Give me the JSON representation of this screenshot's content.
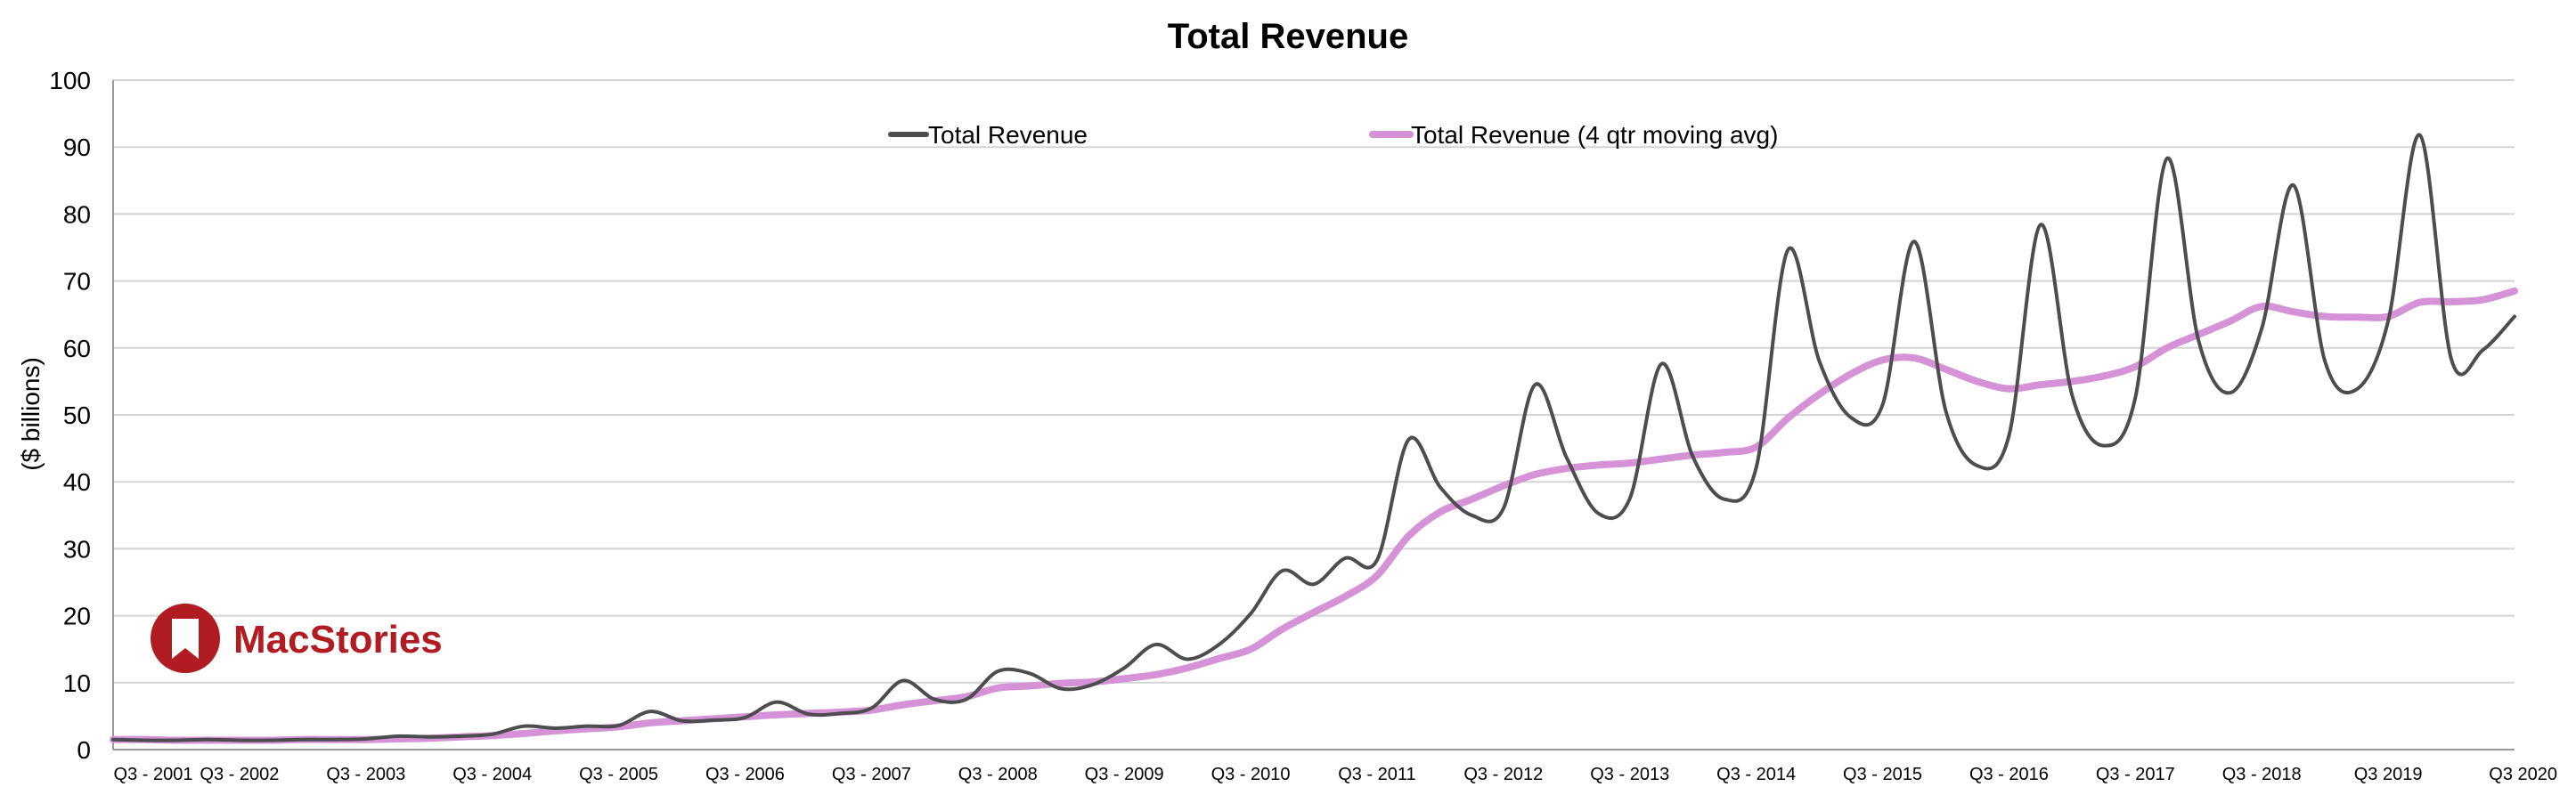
{
  "chart_data": {
    "type": "line",
    "title": "Total Revenue",
    "xlabel": "",
    "ylabel": "($ billions)",
    "ylim": [
      0,
      100
    ],
    "yticks": [
      0,
      10,
      20,
      30,
      40,
      50,
      60,
      70,
      80,
      90,
      100
    ],
    "grid": "horizontal",
    "legend_position": "top",
    "categories": [
      "Q3 - 2001",
      "Q4 - 2001",
      "Q1 - 2002",
      "Q2 - 2002",
      "Q3 - 2002",
      "Q4 - 2002",
      "Q1 - 2003",
      "Q2 - 2003",
      "Q3 - 2003",
      "Q4 - 2003",
      "Q1 - 2004",
      "Q2 - 2004",
      "Q3 - 2004",
      "Q4 - 2004",
      "Q1 - 2005",
      "Q2 - 2005",
      "Q3 - 2005",
      "Q4 - 2005",
      "Q1 - 2006",
      "Q2 - 2006",
      "Q3 - 2006",
      "Q4 - 2006",
      "Q1 - 2007",
      "Q2 - 2007",
      "Q3 - 2007",
      "Q4 - 2007",
      "Q1 - 2008",
      "Q2 - 2008",
      "Q3 - 2008",
      "Q4 - 2008",
      "Q1 - 2009",
      "Q2 - 2009",
      "Q3 - 2009",
      "Q4 - 2009",
      "Q1 - 2010",
      "Q2 - 2010",
      "Q3 - 2010",
      "Q4 - 2010",
      "Q1 - 2011",
      "Q2 - 2011",
      "Q3 - 2011",
      "Q4 - 2011",
      "Q1 - 2012",
      "Q2 - 2012",
      "Q3 - 2012",
      "Q4 - 2012",
      "Q1 - 2013",
      "Q2 - 2013",
      "Q3 - 2013",
      "Q4 - 2013",
      "Q1 - 2014",
      "Q2 - 2014",
      "Q3 - 2014",
      "Q4 - 2014",
      "Q1 - 2015",
      "Q2 - 2015",
      "Q3 - 2015",
      "Q4 - 2015",
      "Q1 - 2016",
      "Q2 - 2016",
      "Q3 - 2016",
      "Q4 - 2016",
      "Q1 - 2017",
      "Q2 - 2017",
      "Q3 - 2017",
      "Q4 - 2017",
      "Q1 - 2018",
      "Q2 - 2018",
      "Q3 - 2018",
      "Q4 - 2018",
      "Q1 - 2019",
      "Q2 - 2019",
      "Q3 - 2019",
      "Q4 - 2019",
      "Q1 - 2020",
      "Q2 - 2020",
      "Q3 2020"
    ],
    "tick_labels": [
      "Q3 - 2001",
      "Q3 - 2002",
      "Q3 - 2003",
      "Q3 - 2004",
      "Q3 - 2005",
      "Q3 - 2006",
      "Q3 - 2007",
      "Q3 - 2008",
      "Q3 - 2009",
      "Q3 - 2010",
      "Q3 - 2011",
      "Q3 - 2012",
      "Q3 - 2013",
      "Q3 - 2014",
      "Q3 - 2015",
      "Q3 - 2016",
      "Q3 - 2017",
      "Q3 - 2018",
      "Q3 2019",
      "Q3 2020"
    ],
    "series": [
      {
        "name": "Total Revenue",
        "color": "#4d4d4f",
        "values": [
          1.5,
          1.4,
          1.4,
          1.5,
          1.4,
          1.4,
          1.5,
          1.5,
          1.6,
          2.0,
          1.9,
          2.0,
          2.3,
          3.5,
          3.2,
          3.5,
          3.6,
          5.7,
          4.3,
          4.4,
          4.8,
          7.1,
          5.3,
          5.4,
          6.2,
          10.3,
          7.5,
          7.5,
          11.7,
          11.4,
          9.1,
          9.7,
          12.2,
          15.7,
          13.5,
          15.7,
          20.3,
          26.7,
          24.7,
          28.6,
          28.3,
          46.3,
          39.2,
          35.0,
          36.0,
          54.5,
          43.6,
          35.3,
          37.5,
          57.6,
          43.7,
          37.4,
          42.1,
          74.6,
          58.0,
          49.6,
          51.5,
          75.9,
          50.6,
          42.4,
          46.9,
          78.4,
          52.9,
          45.4,
          52.6,
          88.3,
          61.1,
          53.3,
          62.9,
          84.3,
          58.0,
          53.8,
          64.0,
          91.8,
          58.3,
          59.7,
          64.7
        ]
      },
      {
        "name": "Total Revenue (4 qtr moving avg)",
        "color": "#d592d6",
        "values": [
          1.5,
          1.5,
          1.4,
          1.4,
          1.4,
          1.4,
          1.5,
          1.5,
          1.5,
          1.6,
          1.7,
          1.9,
          2.1,
          2.4,
          2.8,
          3.1,
          3.4,
          4.0,
          4.3,
          4.6,
          4.9,
          5.2,
          5.4,
          5.6,
          5.9,
          6.7,
          7.3,
          7.9,
          9.2,
          9.5,
          9.9,
          10.1,
          10.6,
          11.2,
          12.2,
          13.6,
          15.0,
          18.0,
          20.5,
          22.9,
          26.0,
          31.9,
          35.5,
          37.4,
          39.4,
          41.1,
          42.0,
          42.5,
          42.8,
          43.4,
          44.0,
          44.4,
          45.2,
          49.5,
          53.1,
          56.1,
          58.2,
          58.5,
          56.8,
          55.0,
          53.9,
          54.5,
          55.0,
          55.8,
          57.2,
          60.0,
          62.0,
          64.0,
          66.2,
          65.4,
          64.7,
          64.6,
          64.7,
          66.8,
          66.9,
          67.2,
          68.5
        ]
      }
    ]
  },
  "logo": {
    "text": "MacStories",
    "color": "#b01c22",
    "icon": "bookmark-icon"
  }
}
